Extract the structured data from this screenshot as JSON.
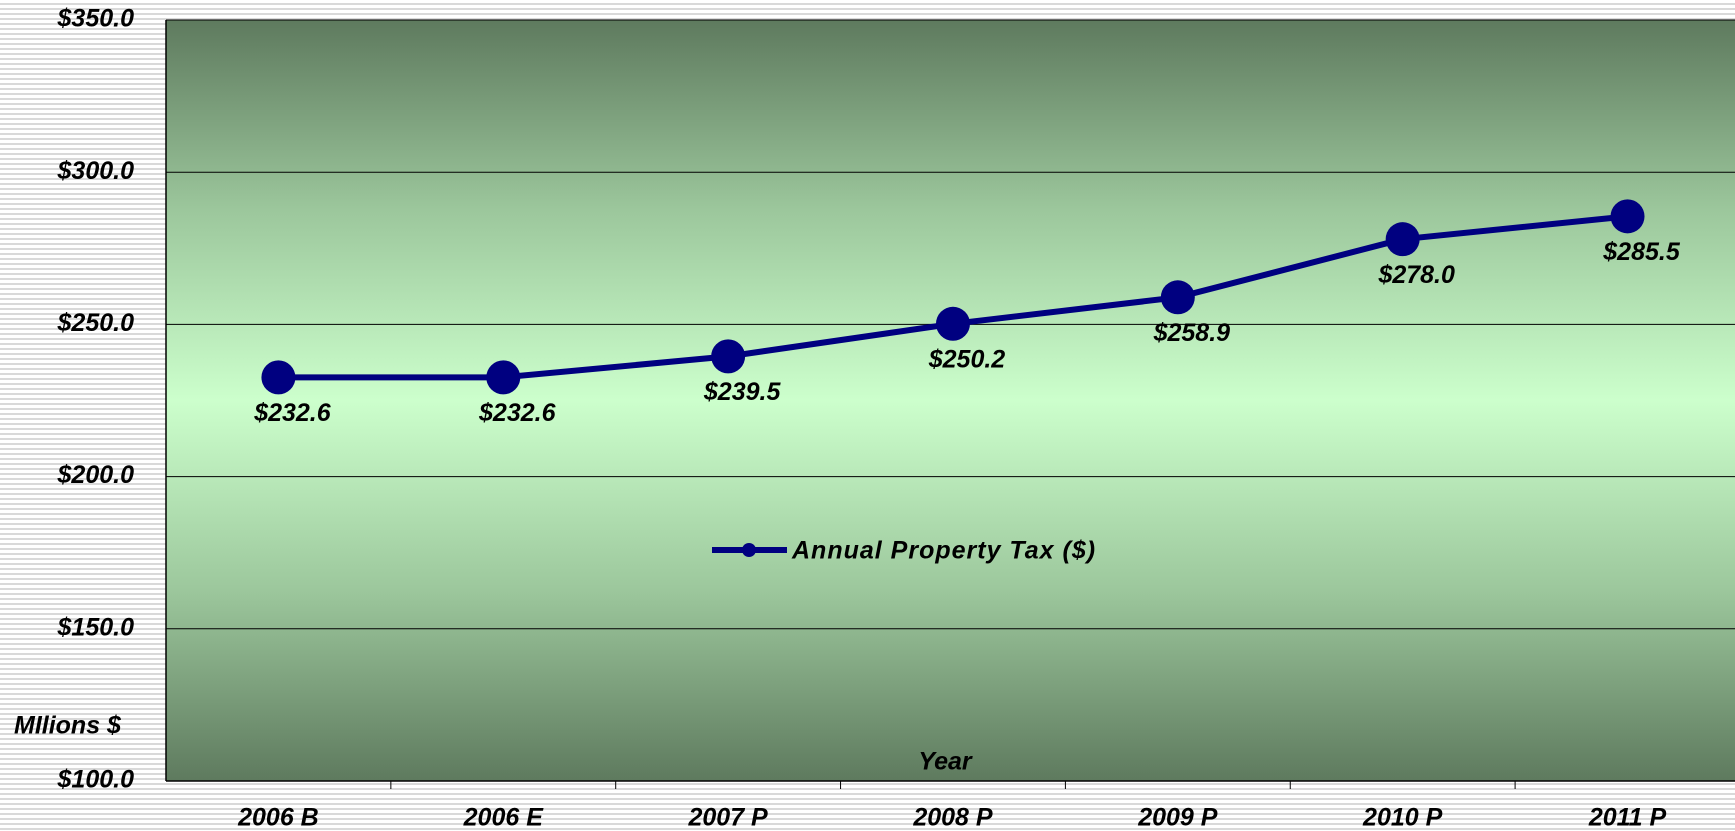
{
  "chart_data": {
    "type": "line",
    "x_label": "Year",
    "y_label": "MIlions $",
    "categories": [
      "2006 B",
      "2006 E",
      "2007 P",
      "2008 P",
      "2009 P",
      "2010 P",
      "2011 P"
    ],
    "series": [
      {
        "name": "Annual Property Tax ($)",
        "color": "#000080",
        "values": [
          232.6,
          232.6,
          239.5,
          250.2,
          258.9,
          278.0,
          285.5
        ],
        "value_labels": [
          "$232.6",
          "$232.6",
          "$239.5",
          "$250.2",
          "$258.9",
          "$278.0",
          "$285.5"
        ]
      }
    ],
    "ylim": [
      100,
      350
    ],
    "yticks": [
      {
        "value": 100,
        "label": "$100.0"
      },
      {
        "value": 150,
        "label": "$150.0"
      },
      {
        "value": 200,
        "label": "$200.0"
      },
      {
        "value": 250,
        "label": "$250.0"
      },
      {
        "value": 300,
        "label": "$300.0"
      },
      {
        "value": 350,
        "label": "$350.0"
      }
    ],
    "grid": true,
    "legend": "center"
  }
}
